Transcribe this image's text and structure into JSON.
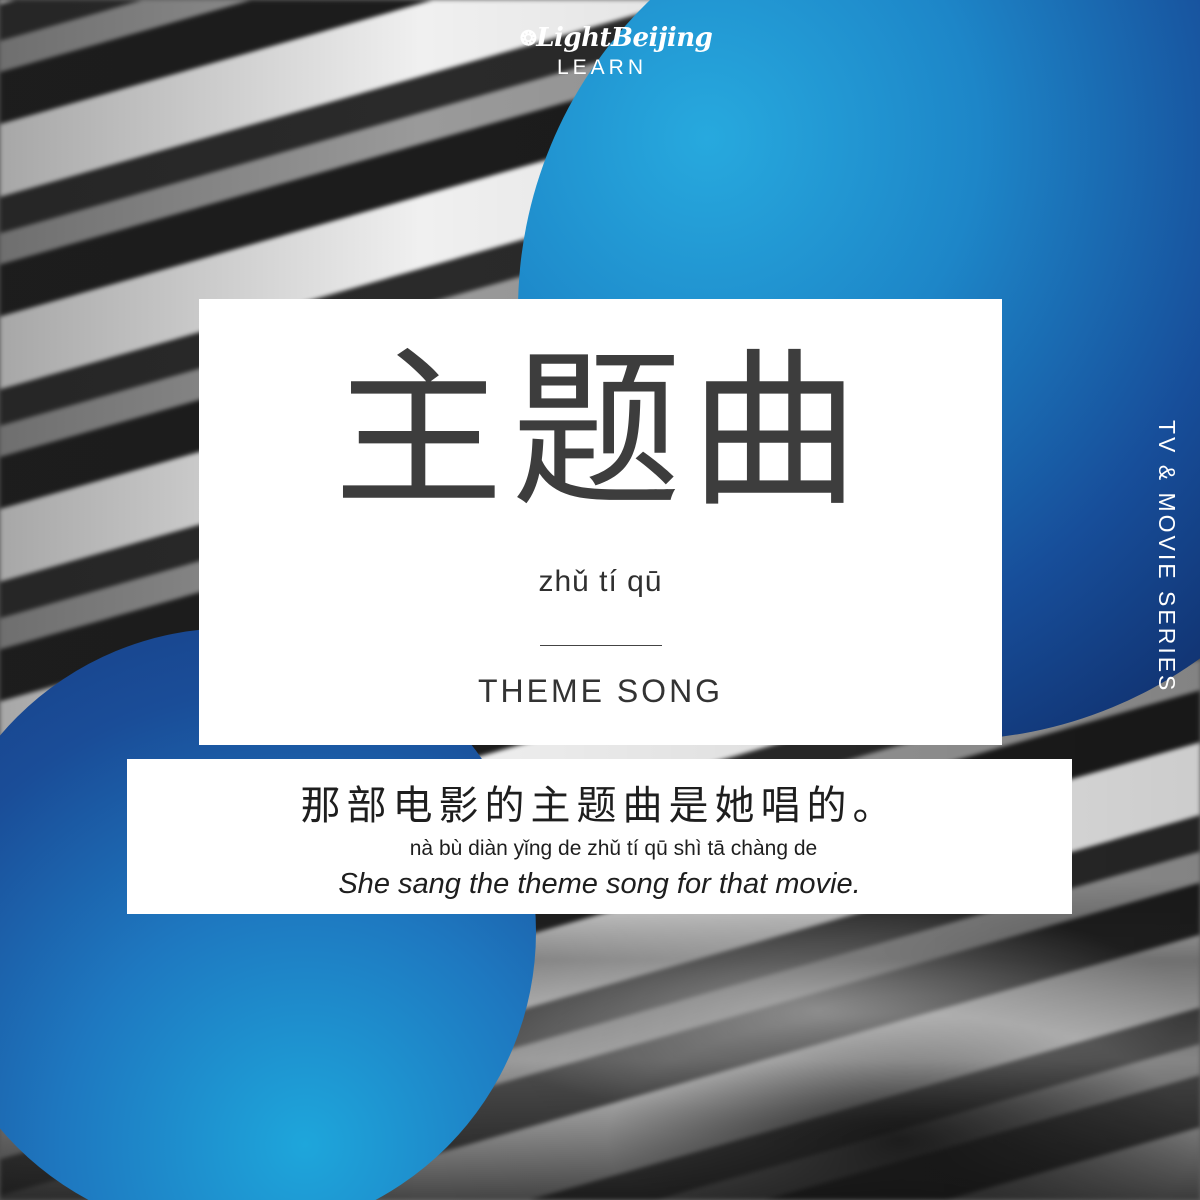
{
  "brand": {
    "logo_text": "LightBeijing",
    "subtitle": "LEARN"
  },
  "series_label": "TV & MOVIE SERIES",
  "word": {
    "hanzi": "主题曲",
    "pinyin": "zhǔ tí qū",
    "meaning": "THEME SONG"
  },
  "example": {
    "hanzi": "那部电影的主题曲是她唱的。",
    "pinyin": "nà bù diàn yǐng de zhǔ tí qū shì tā chàng de",
    "english": "She sang the theme song for that movie."
  },
  "colors": {
    "accent_blue": "#1e8fd0",
    "deep_blue": "#0f2a64",
    "panel": "#ffffff",
    "text": "#3a3a3a"
  },
  "icons": [
    "lightbulb-icon"
  ]
}
